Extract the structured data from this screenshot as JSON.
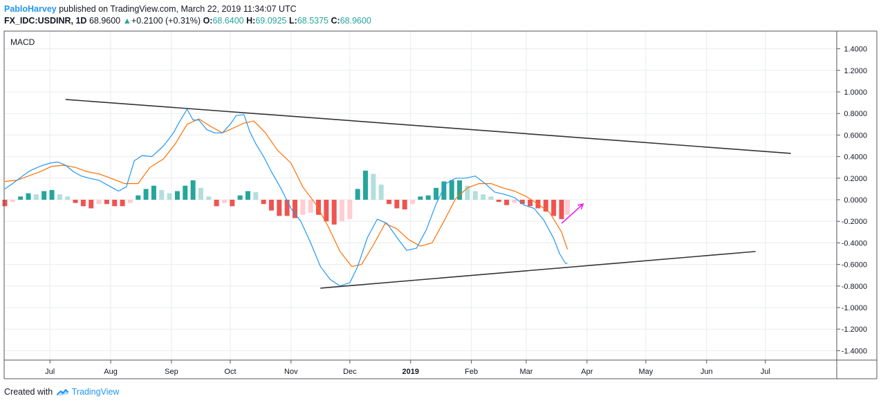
{
  "header": {
    "author": "PabloHarvey",
    "published_text": "published on TradingView.com, March 22, 2019 11:34:07 UTC",
    "symbol": "FX_IDC:USDINR, 1D",
    "last": "68.9600",
    "change_arrow": "▲",
    "change": "+0.2100 (+0.31%)",
    "o_label": "O:",
    "o_value": "68.6400",
    "h_label": "H:",
    "h_value": "69.0925",
    "l_label": "L:",
    "l_value": "68.5375",
    "c_label": "C:",
    "c_value": "68.9600"
  },
  "footer": {
    "created_with": "Created with",
    "brand": "TradingView"
  },
  "colors": {
    "macd_line": "#2196f3",
    "signal_line": "#ff6d00",
    "hist_pos_strong": "#26a69a",
    "hist_pos_weak": "#b2dfdb",
    "hist_neg_strong": "#ef5350",
    "hist_neg_weak": "#ffcdd2",
    "trendline": "#333333",
    "arrow": "#e91ee9"
  },
  "chart_data": {
    "type": "line",
    "title": "MACD",
    "ylim": [
      -1.5,
      1.5
    ],
    "y_ticks": [
      "1.4000",
      "1.2000",
      "1.0000",
      "0.8000",
      "0.6000",
      "0.4000",
      "0.2000",
      "0.0000",
      "-0.2000",
      "-0.4000",
      "-0.6000",
      "-0.8000",
      "-1.0000",
      "-1.2000",
      "-1.4000"
    ],
    "x_ticks": [
      "Jul",
      "Aug",
      "Sep",
      "Oct",
      "Nov",
      "Dec",
      "2019",
      "Feb",
      "Mar",
      "Apr",
      "May",
      "Jun",
      "Jul"
    ],
    "x_tick_dates": [
      "2018-07-01",
      "2018-08-01",
      "2018-09-01",
      "2018-10-01",
      "2018-11-01",
      "2018-12-01",
      "2019-01-01",
      "2019-02-01",
      "2019-03-01",
      "2019-04-01",
      "2019-05-01",
      "2019-06-01",
      "2019-07-01"
    ],
    "x_range": [
      "2018-06-08",
      "2019-08-05"
    ],
    "series": [
      {
        "role": "macd",
        "dates": [
          "2018-06-08",
          "2018-06-12",
          "2018-06-17",
          "2018-06-21",
          "2018-06-26",
          "2018-07-01",
          "2018-07-05",
          "2018-07-09",
          "2018-07-13",
          "2018-07-17",
          "2018-07-21",
          "2018-07-26",
          "2018-08-01",
          "2018-08-05",
          "2018-08-09",
          "2018-08-13",
          "2018-08-17",
          "2018-08-22",
          "2018-08-28",
          "2018-09-02",
          "2018-09-05",
          "2018-09-09",
          "2018-09-12",
          "2018-09-15",
          "2018-09-19",
          "2018-09-23",
          "2018-09-27",
          "2018-10-01",
          "2018-10-04",
          "2018-10-08",
          "2018-10-11",
          "2018-10-14",
          "2018-10-18",
          "2018-10-22",
          "2018-10-27",
          "2018-11-01",
          "2018-11-06",
          "2018-11-11",
          "2018-11-16",
          "2018-11-21",
          "2018-11-26",
          "2018-12-01",
          "2018-12-05",
          "2018-12-10",
          "2018-12-15",
          "2018-12-20",
          "2018-12-25",
          "2018-12-30",
          "2019-01-04",
          "2019-01-09",
          "2019-01-14",
          "2019-01-19",
          "2019-01-24",
          "2019-01-29",
          "2019-02-03",
          "2019-02-08",
          "2019-02-13",
          "2019-02-18",
          "2019-02-23",
          "2019-02-28",
          "2019-03-05",
          "2019-03-10",
          "2019-03-15",
          "2019-03-18",
          "2019-03-21",
          "2019-03-22"
        ],
        "values": [
          0.1,
          0.15,
          0.22,
          0.27,
          0.31,
          0.34,
          0.35,
          0.32,
          0.26,
          0.22,
          0.2,
          0.18,
          0.12,
          0.08,
          0.12,
          0.36,
          0.41,
          0.4,
          0.5,
          0.62,
          0.72,
          0.84,
          0.74,
          0.74,
          0.65,
          0.62,
          0.62,
          0.7,
          0.78,
          0.79,
          0.63,
          0.52,
          0.4,
          0.26,
          0.1,
          -0.08,
          -0.2,
          -0.4,
          -0.62,
          -0.74,
          -0.8,
          -0.77,
          -0.62,
          -0.35,
          -0.18,
          -0.22,
          -0.35,
          -0.47,
          -0.45,
          -0.28,
          -0.04,
          0.15,
          0.2,
          0.2,
          0.22,
          0.15,
          0.07,
          0.05,
          0.02,
          -0.05,
          -0.08,
          -0.19,
          -0.36,
          -0.5,
          -0.59,
          -0.59
        ]
      },
      {
        "role": "signal",
        "dates": [
          "2018-06-08",
          "2018-06-14",
          "2018-06-20",
          "2018-06-26",
          "2018-07-02",
          "2018-07-08",
          "2018-07-14",
          "2018-07-20",
          "2018-07-26",
          "2018-08-01",
          "2018-08-08",
          "2018-08-15",
          "2018-08-21",
          "2018-08-28",
          "2018-09-03",
          "2018-09-09",
          "2018-09-15",
          "2018-09-21",
          "2018-09-27",
          "2018-10-02",
          "2018-10-08",
          "2018-10-13",
          "2018-10-19",
          "2018-10-25",
          "2018-11-01",
          "2018-11-07",
          "2018-11-14",
          "2018-11-20",
          "2018-11-26",
          "2018-12-02",
          "2018-12-07",
          "2018-12-13",
          "2018-12-19",
          "2018-12-25",
          "2018-12-31",
          "2019-01-06",
          "2019-01-12",
          "2019-01-18",
          "2019-01-24",
          "2019-01-30",
          "2019-02-05",
          "2019-02-11",
          "2019-02-17",
          "2019-02-23",
          "2019-03-01",
          "2019-03-07",
          "2019-03-13",
          "2019-03-19",
          "2019-03-22"
        ],
        "values": [
          0.17,
          0.18,
          0.22,
          0.26,
          0.31,
          0.32,
          0.3,
          0.26,
          0.24,
          0.2,
          0.15,
          0.15,
          0.3,
          0.38,
          0.52,
          0.7,
          0.75,
          0.68,
          0.62,
          0.66,
          0.71,
          0.73,
          0.62,
          0.46,
          0.34,
          0.12,
          -0.05,
          -0.25,
          -0.48,
          -0.62,
          -0.6,
          -0.42,
          -0.22,
          -0.27,
          -0.37,
          -0.43,
          -0.4,
          -0.2,
          0.01,
          0.11,
          0.15,
          0.15,
          0.11,
          0.08,
          0.03,
          -0.04,
          -0.12,
          -0.3,
          -0.46
        ]
      },
      {
        "role": "histogram",
        "dates": [
          "2018-06-08",
          "2018-06-12",
          "2018-06-16",
          "2018-06-20",
          "2018-06-24",
          "2018-06-28",
          "2018-07-02",
          "2018-07-06",
          "2018-07-10",
          "2018-07-14",
          "2018-07-18",
          "2018-07-22",
          "2018-07-26",
          "2018-07-30",
          "2018-08-03",
          "2018-08-07",
          "2018-08-11",
          "2018-08-15",
          "2018-08-19",
          "2018-08-23",
          "2018-08-27",
          "2018-08-31",
          "2018-09-04",
          "2018-09-08",
          "2018-09-12",
          "2018-09-16",
          "2018-09-20",
          "2018-09-24",
          "2018-09-28",
          "2018-10-02",
          "2018-10-06",
          "2018-10-10",
          "2018-10-14",
          "2018-10-18",
          "2018-10-22",
          "2018-10-26",
          "2018-10-30",
          "2018-11-03",
          "2018-11-07",
          "2018-11-11",
          "2018-11-15",
          "2018-11-19",
          "2018-11-23",
          "2018-11-27",
          "2018-12-01",
          "2018-12-05",
          "2018-12-09",
          "2018-12-13",
          "2018-12-17",
          "2018-12-21",
          "2018-12-25",
          "2018-12-29",
          "2019-01-02",
          "2019-01-06",
          "2019-01-10",
          "2019-01-14",
          "2019-01-18",
          "2019-01-22",
          "2019-01-26",
          "2019-01-30",
          "2019-02-03",
          "2019-02-07",
          "2019-02-11",
          "2019-02-15",
          "2019-02-19",
          "2019-02-23",
          "2019-02-27",
          "2019-03-03",
          "2019-03-07",
          "2019-03-11",
          "2019-03-15",
          "2019-03-19",
          "2019-03-22"
        ],
        "values": [
          -0.06,
          -0.02,
          0.03,
          0.06,
          0.05,
          0.08,
          0.09,
          0.05,
          0.03,
          -0.03,
          -0.06,
          -0.08,
          -0.04,
          -0.04,
          -0.06,
          -0.06,
          -0.03,
          0.04,
          0.1,
          0.13,
          0.09,
          0.06,
          0.08,
          0.13,
          0.18,
          0.11,
          0.03,
          -0.06,
          -0.03,
          -0.06,
          0.04,
          0.08,
          0.07,
          -0.04,
          -0.1,
          -0.15,
          -0.15,
          -0.17,
          -0.14,
          -0.12,
          -0.14,
          -0.2,
          -0.23,
          -0.2,
          -0.18,
          0.1,
          0.27,
          0.24,
          0.14,
          -0.04,
          -0.08,
          -0.09,
          -0.04,
          0.03,
          0.04,
          0.11,
          0.17,
          0.18,
          0.18,
          0.13,
          0.08,
          0.05,
          0.03,
          -0.02,
          -0.05,
          -0.03,
          -0.04,
          -0.06,
          -0.08,
          -0.11,
          -0.15,
          -0.18,
          -0.14
        ]
      }
    ],
    "trendlines": [
      {
        "from": {
          "date": "2018-07-09",
          "value": 0.93
        },
        "to": {
          "date": "2019-07-14",
          "value": 0.43
        }
      },
      {
        "from": {
          "date": "2018-11-16",
          "value": -0.82
        },
        "to": {
          "date": "2019-06-26",
          "value": -0.48
        }
      }
    ],
    "annotation_arrow": {
      "from": {
        "date": "2019-03-19",
        "value": -0.22
      },
      "to": {
        "date": "2019-03-30",
        "value": -0.04
      }
    }
  }
}
